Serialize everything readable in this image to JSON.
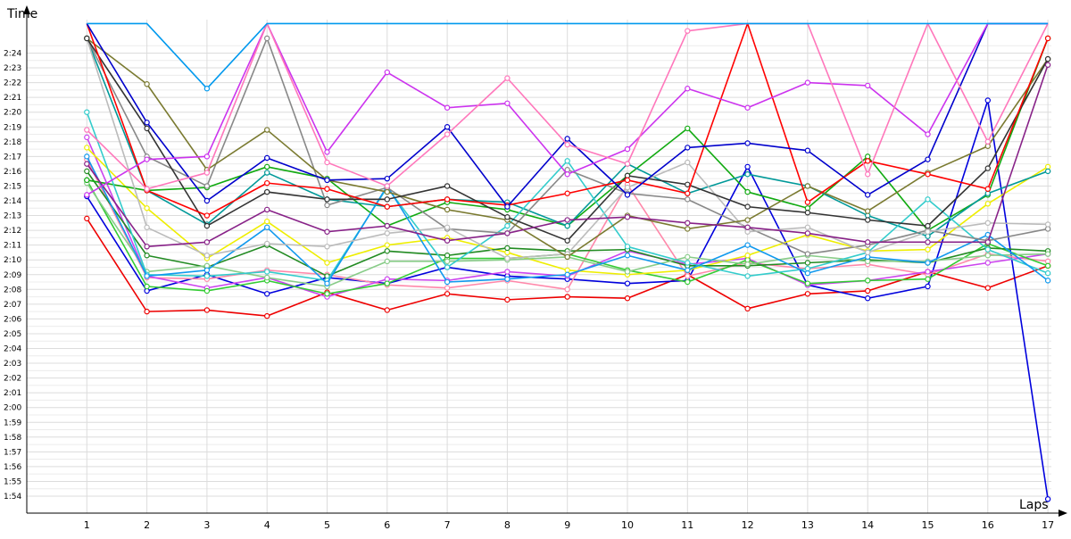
{
  "chart_data": {
    "type": "line",
    "title": "",
    "xlabel": "Laps",
    "ylabel": "Time",
    "grid": true,
    "legend": "none",
    "x": [
      1,
      2,
      3,
      4,
      5,
      6,
      7,
      8,
      9,
      10,
      11,
      12,
      13,
      14,
      15,
      16,
      17
    ],
    "y_ticks": [
      "1:54",
      "1:55",
      "1:56",
      "1:57",
      "1:58",
      "1:59",
      "2:00",
      "2:01",
      "2:02",
      "2:03",
      "2:04",
      "2:05",
      "2:06",
      "2:07",
      "2:08",
      "2:09",
      "2:10",
      "2:11",
      "2:12",
      "2:13",
      "2:14",
      "2:15",
      "2:16",
      "2:17",
      "2:18",
      "2:19",
      "2:20",
      "2:21",
      "2:22",
      "2:23",
      "2:24"
    ],
    "ylim": [
      113.4,
      145.8
    ],
    "xlim": [
      0,
      17
    ],
    "series": [
      {
        "color": "#ee0000",
        "values": [
          132.8,
          126.5,
          126.6,
          126.2,
          127.8,
          126.6,
          127.7,
          127.3,
          127.5,
          127.4,
          129.0,
          126.7,
          127.7,
          127.9,
          129.2,
          128.1,
          129.6
        ]
      },
      {
        "color": "#0000dd",
        "values": [
          134.3,
          127.9,
          129.0,
          127.7,
          128.8,
          128.4,
          129.5,
          128.9,
          128.7,
          128.4,
          128.6,
          136.3,
          128.3,
          127.4,
          128.2,
          140.8,
          113.8
        ]
      },
      {
        "color": "#ff88aa",
        "values": [
          136.8,
          128.8,
          128.7,
          129.3,
          129.0,
          128.3,
          128.1,
          128.6,
          128.0,
          135.1,
          128.9,
          129.8,
          129.4,
          129.7,
          129.0,
          130.4,
          129.9
        ]
      },
      {
        "color": "#cc44ee",
        "values": [
          138.3,
          128.9,
          128.1,
          128.8,
          127.5,
          128.7,
          128.6,
          129.2,
          128.9,
          130.6,
          129.7,
          130.1,
          128.3,
          128.6,
          129.2,
          129.8,
          130.4
        ]
      },
      {
        "color": "#33cc33",
        "values": [
          135.4,
          128.2,
          127.9,
          128.6,
          127.7,
          128.4,
          130.1,
          130.1,
          130.4,
          129.3,
          128.5,
          130.0,
          128.4,
          128.6,
          128.7,
          131.1,
          129.6
        ]
      },
      {
        "color": "#eeee00",
        "values": [
          137.6,
          133.5,
          130.1,
          132.6,
          129.8,
          131.0,
          131.5,
          130.5,
          129.3,
          129.0,
          129.3,
          130.3,
          131.7,
          130.6,
          130.7,
          133.8,
          136.3
        ]
      },
      {
        "color": "#228b22",
        "values": [
          136.0,
          130.3,
          129.5,
          131.0,
          128.9,
          130.6,
          130.3,
          130.8,
          130.6,
          130.7,
          129.6,
          129.6,
          129.8,
          130.0,
          129.8,
          130.8,
          130.6
        ]
      },
      {
        "color": "#88cc88",
        "values": [
          135.2,
          129.2,
          129.6,
          128.8,
          128.2,
          129.9,
          129.9,
          130.0,
          130.2,
          129.2,
          130.2,
          129.7,
          130.3,
          129.9,
          129.9,
          130.3,
          130.4
        ]
      },
      {
        "color": "#11aa11",
        "values": [
          135.4,
          134.7,
          134.9,
          136.3,
          135.5,
          132.3,
          133.9,
          133.4,
          132.3,
          135.7,
          138.9,
          134.6,
          133.5,
          137.0,
          132.0,
          134.4,
          145.0
        ]
      },
      {
        "color": "#009999",
        "values": [
          145.0,
          134.7,
          132.4,
          135.9,
          134.1,
          133.6,
          134.1,
          133.9,
          132.3,
          136.5,
          134.5,
          135.8,
          135.0,
          133.0,
          131.6,
          134.5,
          136.0
        ]
      },
      {
        "color": "#33cccc",
        "values": [
          140.0,
          129.0,
          128.9,
          129.2,
          128.6,
          134.9,
          129.5,
          132.3,
          136.7,
          130.9,
          129.8,
          128.9,
          129.4,
          130.5,
          134.1,
          130.7,
          129.1
        ]
      },
      {
        "color": "#1199ee",
        "values": [
          137.0,
          128.9,
          129.3,
          132.2,
          128.4,
          135.0,
          128.5,
          128.7,
          129.0,
          130.3,
          129.3,
          131.0,
          129.1,
          130.2,
          129.8,
          131.7,
          128.6
        ]
      },
      {
        "color": "#888888",
        "values": [
          145.0,
          137.0,
          135.0,
          145.0,
          133.7,
          134.9,
          132.1,
          131.8,
          136.1,
          134.5,
          134.1,
          132.2,
          130.4,
          131.0,
          132.0,
          131.3,
          132.1
        ]
      },
      {
        "color": "#bbbbbb",
        "values": [
          145.0,
          132.2,
          130.3,
          131.1,
          130.9,
          131.8,
          132.2,
          130.1,
          130.4,
          134.9,
          136.6,
          131.9,
          132.2,
          130.5,
          131.9,
          132.5,
          132.4
        ]
      },
      {
        "color": "#7a7a30",
        "values": [
          145.0,
          141.9,
          136.1,
          138.8,
          135.4,
          134.6,
          133.4,
          132.7,
          130.2,
          133.0,
          132.1,
          132.7,
          135.0,
          133.3,
          135.9,
          137.7,
          143.6
        ]
      },
      {
        "color": "#333333",
        "values": [
          145.0,
          138.9,
          132.3,
          134.6,
          134.1,
          134.1,
          135.0,
          132.9,
          131.3,
          135.7,
          135.1,
          133.6,
          133.2,
          132.7,
          132.3,
          136.2,
          143.6
        ]
      },
      {
        "color": "#882288",
        "values": [
          136.5,
          130.9,
          131.2,
          133.4,
          131.9,
          132.3,
          131.3,
          131.8,
          132.7,
          132.9,
          132.5,
          132.2,
          131.8,
          131.2,
          131.2,
          131.2,
          143.2
        ]
      },
      {
        "color": "#ff0000",
        "values": [
          146.0,
          134.7,
          133.0,
          135.2,
          134.8,
          133.6,
          134.1,
          133.7,
          134.5,
          135.4,
          134.5,
          146.0,
          133.9,
          136.7,
          135.8,
          134.8,
          145.0
        ]
      },
      {
        "color": "#0000cc",
        "values": [
          146.0,
          139.3,
          134.0,
          136.9,
          135.4,
          135.5,
          139.0,
          133.6,
          138.2,
          134.4,
          137.6,
          137.9,
          137.4,
          134.4,
          136.8,
          146.0,
          146.0
        ]
      },
      {
        "color": "#cc33ee",
        "values": [
          134.4,
          136.8,
          137.0,
          146.0,
          137.3,
          142.7,
          140.3,
          140.6,
          135.8,
          137.5,
          141.6,
          140.3,
          142.0,
          141.8,
          138.5,
          146.0,
          146.0
        ]
      },
      {
        "color": "#ff77bb",
        "values": [
          138.8,
          134.8,
          135.9,
          146.0,
          136.6,
          135.0,
          138.5,
          142.3,
          137.8,
          136.5,
          145.5,
          146.0,
          146.0,
          135.8,
          146.0,
          138.0,
          146.0
        ]
      },
      {
        "color": "#0099ee",
        "values": [
          146.0,
          146.0,
          141.6,
          146.0,
          146.0,
          146.0,
          146.0,
          146.0,
          146.0,
          146.0,
          146.0,
          146.0,
          146.0,
          146.0,
          146.0,
          146.0,
          146.0
        ]
      }
    ]
  }
}
